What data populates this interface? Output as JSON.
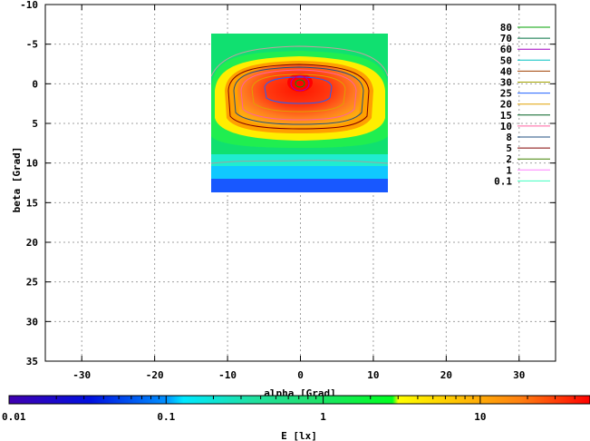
{
  "chart_data": {
    "type": "heatmap",
    "title": "",
    "xlabel": "alpha [Grad]",
    "ylabel": "beta [Grad]",
    "colorbar_label": "E [lx]",
    "xlim": [
      -35,
      35
    ],
    "ylim": [
      -10,
      35
    ],
    "y_inverted": true,
    "x_ticks": [
      -30,
      -20,
      -10,
      0,
      10,
      20,
      30
    ],
    "y_ticks": [
      -10,
      -5,
      0,
      5,
      10,
      15,
      20,
      25,
      30,
      35
    ],
    "x_tick_labels": [
      "-30",
      "-20",
      "-10",
      "0",
      "10",
      "20",
      "30"
    ],
    "y_tick_labels": [
      "-10",
      "-5",
      "0",
      "5",
      "10",
      "15",
      "20",
      "25",
      "30",
      "35"
    ],
    "grid": true,
    "data_extent": {
      "alpha": [
        -12,
        12
      ],
      "beta": [
        -6,
        14
      ]
    },
    "peak": {
      "alpha": 0,
      "beta": 0
    },
    "colorbar": {
      "scale": "log",
      "range": [
        0.01,
        50
      ],
      "ticks": [
        0.01,
        0.1,
        1,
        10
      ],
      "tick_labels": [
        "0.01",
        "0.1",
        "1",
        "10"
      ]
    },
    "legend_position": "right",
    "contour_levels": [
      {
        "label": "80",
        "color": "#00a000"
      },
      {
        "label": "70",
        "color": "#007040"
      },
      {
        "label": "60",
        "color": "#a000c0"
      },
      {
        "label": "50",
        "color": "#00c0c0"
      },
      {
        "label": "40",
        "color": "#a04000"
      },
      {
        "label": "30",
        "color": "#a0a000"
      },
      {
        "label": "25",
        "color": "#2060ff"
      },
      {
        "label": "20",
        "color": "#e0a000"
      },
      {
        "label": "15",
        "color": "#006020"
      },
      {
        "label": "10",
        "color": "#ff60a0"
      },
      {
        "label": "8",
        "color": "#205080"
      },
      {
        "label": "5",
        "color": "#800000"
      },
      {
        "label": "2",
        "color": "#408000"
      },
      {
        "label": "1",
        "color": "#ff80ff"
      },
      {
        "label": "0.1",
        "color": "#40ffc0"
      }
    ]
  }
}
